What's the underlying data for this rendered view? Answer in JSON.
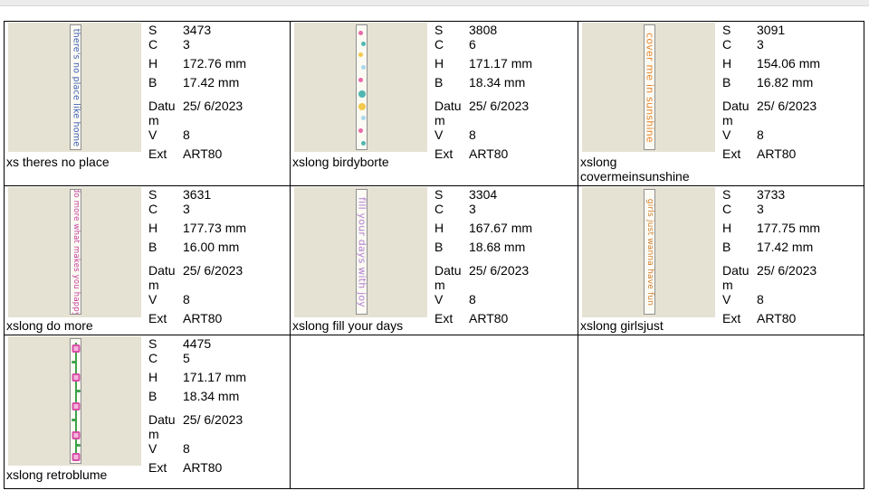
{
  "items": [
    {
      "name": "xs theres no place",
      "strip_text": "there's no place like home",
      "strip_color": "#3f5fb2",
      "specs": {
        "S": "3473",
        "C": "3",
        "H": "172.76 mm",
        "B": "17.42 mm",
        "Datum": "25/ 6/2023",
        "V": "8",
        "Ext": "ART80"
      }
    },
    {
      "name": "xslong birdyborte",
      "strip_text": "",
      "strip_color": "#4fb7b0",
      "specs": {
        "S": "3808",
        "C": "6",
        "H": "171.17 mm",
        "B": "18.34 mm",
        "Datum": "25/ 6/2023",
        "V": "8",
        "Ext": "ART80"
      }
    },
    {
      "name": "xslong covermeinsunshine",
      "strip_text": "cover me in sunshine",
      "strip_color": "#e8852b",
      "specs": {
        "S": "3091",
        "C": "3",
        "H": "154.06 mm",
        "B": "16.82 mm",
        "Datum": "25/ 6/2023",
        "V": "8",
        "Ext": "ART80"
      }
    },
    {
      "name": "xslong do more",
      "strip_text": "do more what makes you happy",
      "strip_color": "#c43f9b",
      "specs": {
        "S": "3631",
        "C": "3",
        "H": "177.73 mm",
        "B": "16.00 mm",
        "Datum": "25/ 6/2023",
        "V": "8",
        "Ext": "ART80"
      }
    },
    {
      "name": "xslong fill your days",
      "strip_text": "fill your days with joy",
      "strip_color": "#b27fd0",
      "specs": {
        "S": "3304",
        "C": "3",
        "H": "167.67 mm",
        "B": "18.68 mm",
        "Datum": "25/ 6/2023",
        "V": "8",
        "Ext": "ART80"
      }
    },
    {
      "name": "xslong girlsjust",
      "strip_text": "girls just wanna have fun",
      "strip_color": "#d2802e",
      "specs": {
        "S": "3733",
        "C": "3",
        "H": "177.75 mm",
        "B": "17.42 mm",
        "Datum": "25/ 6/2023",
        "V": "8",
        "Ext": "ART80"
      }
    },
    {
      "name": "xslong retroblume",
      "strip_text": "",
      "strip_color": "#d84fa7",
      "specs": {
        "S": "4475",
        "C": "5",
        "H": "171.17 mm",
        "B": "18.34 mm",
        "Datum": "25/ 6/2023",
        "V": "8",
        "Ext": "ART80"
      }
    }
  ],
  "labels": {
    "S": "S",
    "C": "C",
    "H": "H",
    "B": "B",
    "Datum": "Datum",
    "V": "V",
    "Ext": "Ext"
  }
}
